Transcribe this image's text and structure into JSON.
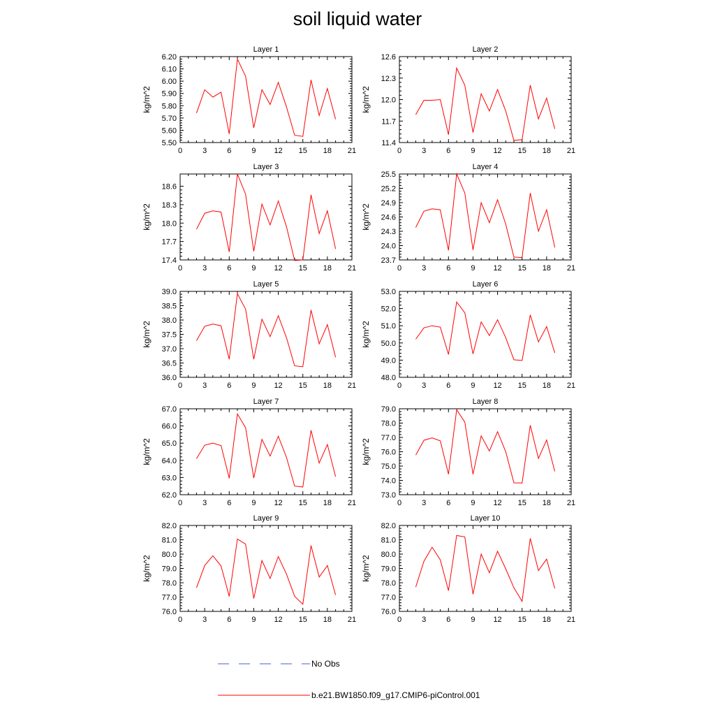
{
  "title": "soil liquid water",
  "legend": {
    "position": "bottom-center",
    "entries": [
      {
        "label": "No Obs",
        "color": "#4a5bd4",
        "dashed": true
      },
      {
        "label": "b.e21.BW1850.f09_g17.CMIP6-piControl.001",
        "color": "#ff0000",
        "dashed": false
      }
    ]
  },
  "chart_data": [
    {
      "type": "line",
      "title": "Layer 1",
      "ylabel": "kg/m^2",
      "xlim": [
        0,
        21
      ],
      "xticks": [
        "0",
        "3",
        "6",
        "9",
        "12",
        "15",
        "18",
        "21"
      ],
      "ylim": [
        5.5,
        6.2
      ],
      "yticks": [
        "5.50",
        "5.60",
        "5.70",
        "5.80",
        "5.90",
        "6.00",
        "6.10",
        "6.20"
      ],
      "x": [
        2,
        3,
        4,
        5,
        6,
        7,
        8,
        9,
        10,
        11,
        12,
        13,
        14,
        15,
        16,
        17,
        18,
        19
      ],
      "series": [
        {
          "name": "b.e21.BW1850.f09_g17.CMIP6-piControl.001",
          "values": [
            5.74,
            5.93,
            5.87,
            5.91,
            5.57,
            6.18,
            6.04,
            5.62,
            5.93,
            5.81,
            5.99,
            5.79,
            5.56,
            5.55,
            6.01,
            5.72,
            5.94,
            5.69
          ]
        }
      ]
    },
    {
      "type": "line",
      "title": "Layer 2",
      "ylabel": "kg/m^2",
      "xlim": [
        0,
        21
      ],
      "xticks": [
        "0",
        "3",
        "6",
        "9",
        "12",
        "15",
        "18",
        "21"
      ],
      "ylim": [
        11.4,
        12.6
      ],
      "yticks": [
        "11.4",
        "11.7",
        "12.0",
        "12.3",
        "12.6"
      ],
      "x": [
        2,
        3,
        4,
        5,
        6,
        7,
        8,
        9,
        10,
        11,
        12,
        13,
        14,
        15,
        16,
        17,
        18,
        19
      ],
      "series": [
        {
          "name": "b.e21.BW1850.f09_g17.CMIP6-piControl.001",
          "values": [
            11.79,
            11.99,
            11.99,
            12.0,
            11.51,
            12.44,
            12.2,
            11.54,
            12.08,
            11.84,
            12.14,
            11.84,
            11.43,
            11.44,
            12.2,
            11.73,
            12.02,
            11.59
          ]
        }
      ]
    },
    {
      "type": "line",
      "title": "Layer 3",
      "ylabel": "kg/m^2",
      "xlim": [
        0,
        21
      ],
      "xticks": [
        "0",
        "3",
        "6",
        "9",
        "12",
        "15",
        "18",
        "21"
      ],
      "ylim": [
        17.4,
        18.8
      ],
      "yticks": [
        "17.4",
        "17.7",
        "18.0",
        "18.3",
        "18.6"
      ],
      "x": [
        2,
        3,
        4,
        5,
        6,
        7,
        8,
        9,
        10,
        11,
        12,
        13,
        14,
        15,
        16,
        17,
        18,
        19
      ],
      "series": [
        {
          "name": "b.e21.BW1850.f09_g17.CMIP6-piControl.001",
          "values": [
            17.9,
            18.16,
            18.2,
            18.18,
            17.53,
            18.8,
            18.47,
            17.54,
            18.31,
            17.97,
            18.36,
            17.94,
            17.39,
            17.4,
            18.46,
            17.83,
            18.2,
            17.58
          ]
        }
      ]
    },
    {
      "type": "line",
      "title": "Layer 4",
      "ylabel": "kg/m^2",
      "xlim": [
        0,
        21
      ],
      "xticks": [
        "0",
        "3",
        "6",
        "9",
        "12",
        "15",
        "18",
        "21"
      ],
      "ylim": [
        23.7,
        25.5
      ],
      "yticks": [
        "23.7",
        "24.0",
        "24.3",
        "24.6",
        "24.9",
        "25.2",
        "25.5"
      ],
      "x": [
        2,
        3,
        4,
        5,
        6,
        7,
        8,
        9,
        10,
        11,
        12,
        13,
        14,
        15,
        16,
        17,
        18,
        19
      ],
      "series": [
        {
          "name": "b.e21.BW1850.f09_g17.CMIP6-piControl.001",
          "values": [
            24.38,
            24.72,
            24.77,
            24.75,
            23.9,
            25.5,
            25.1,
            23.91,
            24.9,
            24.48,
            24.96,
            24.45,
            23.76,
            23.75,
            25.1,
            24.3,
            24.75,
            23.96
          ]
        }
      ]
    },
    {
      "type": "line",
      "title": "Layer 5",
      "ylabel": "kg/m^2",
      "xlim": [
        0,
        21
      ],
      "xticks": [
        "0",
        "3",
        "6",
        "9",
        "12",
        "15",
        "18",
        "21"
      ],
      "ylim": [
        36.0,
        39.0
      ],
      "yticks": [
        "36.0",
        "36.5",
        "37.0",
        "37.5",
        "38.0",
        "38.5",
        "39.0"
      ],
      "x": [
        2,
        3,
        4,
        5,
        6,
        7,
        8,
        9,
        10,
        11,
        12,
        13,
        14,
        15,
        16,
        17,
        18,
        19
      ],
      "series": [
        {
          "name": "b.e21.BW1850.f09_g17.CMIP6-piControl.001",
          "values": [
            37.28,
            37.78,
            37.86,
            37.8,
            36.63,
            38.92,
            38.38,
            36.63,
            38.03,
            37.42,
            38.15,
            37.38,
            36.4,
            36.37,
            38.35,
            37.17,
            37.84,
            36.7
          ]
        }
      ]
    },
    {
      "type": "line",
      "title": "Layer 6",
      "ylabel": "kg/m^2",
      "xlim": [
        0,
        21
      ],
      "xticks": [
        "0",
        "3",
        "6",
        "9",
        "12",
        "15",
        "18",
        "21"
      ],
      "ylim": [
        48.0,
        53.0
      ],
      "yticks": [
        "48.0",
        "49.0",
        "50.0",
        "51.0",
        "52.0",
        "53.0"
      ],
      "x": [
        2,
        3,
        4,
        5,
        6,
        7,
        8,
        9,
        10,
        11,
        12,
        13,
        14,
        15,
        16,
        17,
        18,
        19
      ],
      "series": [
        {
          "name": "b.e21.BW1850.f09_g17.CMIP6-piControl.001",
          "values": [
            50.22,
            50.88,
            51.0,
            50.92,
            49.33,
            52.38,
            51.75,
            49.36,
            51.22,
            50.43,
            51.35,
            50.31,
            49.02,
            48.98,
            51.63,
            50.06,
            50.95,
            49.42
          ]
        }
      ]
    },
    {
      "type": "line",
      "title": "Layer 7",
      "ylabel": "kg/m^2",
      "xlim": [
        0,
        21
      ],
      "xticks": [
        "0",
        "3",
        "6",
        "9",
        "12",
        "15",
        "18",
        "21"
      ],
      "ylim": [
        62.0,
        67.0
      ],
      "yticks": [
        "62.0",
        "63.0",
        "64.0",
        "65.0",
        "66.0",
        "67.0"
      ],
      "x": [
        2,
        3,
        4,
        5,
        6,
        7,
        8,
        9,
        10,
        11,
        12,
        13,
        14,
        15,
        16,
        17,
        18,
        19
      ],
      "series": [
        {
          "name": "b.e21.BW1850.f09_g17.CMIP6-piControl.001",
          "values": [
            64.1,
            64.88,
            65.0,
            64.86,
            62.96,
            66.7,
            65.9,
            62.97,
            65.22,
            64.25,
            65.4,
            64.17,
            62.5,
            62.45,
            65.75,
            63.84,
            64.92,
            63.05
          ]
        }
      ]
    },
    {
      "type": "line",
      "title": "Layer 8",
      "ylabel": "kg/m^2",
      "xlim": [
        0,
        21
      ],
      "xticks": [
        "0",
        "3",
        "6",
        "9",
        "12",
        "15",
        "18",
        "21"
      ],
      "ylim": [
        73.0,
        79.0
      ],
      "yticks": [
        "73.0",
        "74.0",
        "75.0",
        "76.0",
        "77.0",
        "78.0",
        "79.0"
      ],
      "x": [
        2,
        3,
        4,
        5,
        6,
        7,
        8,
        9,
        10,
        11,
        12,
        13,
        14,
        15,
        16,
        17,
        18,
        19
      ],
      "series": [
        {
          "name": "b.e21.BW1850.f09_g17.CMIP6-piControl.001",
          "values": [
            75.77,
            76.8,
            76.97,
            76.76,
            74.43,
            78.93,
            78.07,
            74.43,
            77.11,
            76.05,
            77.4,
            76.0,
            73.83,
            73.82,
            77.85,
            75.53,
            76.82,
            74.63
          ]
        }
      ]
    },
    {
      "type": "line",
      "title": "Layer 9",
      "ylabel": "kg/m^2",
      "xlim": [
        0,
        21
      ],
      "xticks": [
        "0",
        "3",
        "6",
        "9",
        "12",
        "15",
        "18",
        "21"
      ],
      "ylim": [
        76.0,
        82.0
      ],
      "yticks": [
        "76.0",
        "77.0",
        "78.0",
        "79.0",
        "80.0",
        "81.0",
        "82.0"
      ],
      "x": [
        2,
        3,
        4,
        5,
        6,
        7,
        8,
        9,
        10,
        11,
        12,
        13,
        14,
        15,
        16,
        17,
        18,
        19
      ],
      "series": [
        {
          "name": "b.e21.BW1850.f09_g17.CMIP6-piControl.001",
          "values": [
            77.65,
            79.2,
            79.88,
            79.17,
            77.05,
            81.05,
            80.7,
            76.9,
            79.55,
            78.3,
            79.83,
            78.6,
            77.05,
            76.5,
            80.6,
            78.4,
            79.2,
            77.15
          ]
        }
      ]
    },
    {
      "type": "line",
      "title": "Layer 10",
      "ylabel": "kg/m^2",
      "xlim": [
        0,
        21
      ],
      "xticks": [
        "0",
        "3",
        "6",
        "9",
        "12",
        "15",
        "18",
        "21"
      ],
      "ylim": [
        76.0,
        82.0
      ],
      "yticks": [
        "76.0",
        "77.0",
        "78.0",
        "79.0",
        "80.0",
        "81.0",
        "82.0"
      ],
      "x": [
        2,
        3,
        4,
        5,
        6,
        7,
        8,
        9,
        10,
        11,
        12,
        13,
        14,
        15,
        16,
        17,
        18,
        19
      ],
      "series": [
        {
          "name": "b.e21.BW1850.f09_g17.CMIP6-piControl.001",
          "values": [
            77.7,
            79.5,
            80.48,
            79.6,
            77.45,
            81.3,
            81.2,
            77.2,
            80.0,
            78.7,
            80.2,
            78.97,
            77.65,
            76.7,
            81.1,
            78.85,
            79.65,
            77.6
          ]
        }
      ]
    }
  ]
}
